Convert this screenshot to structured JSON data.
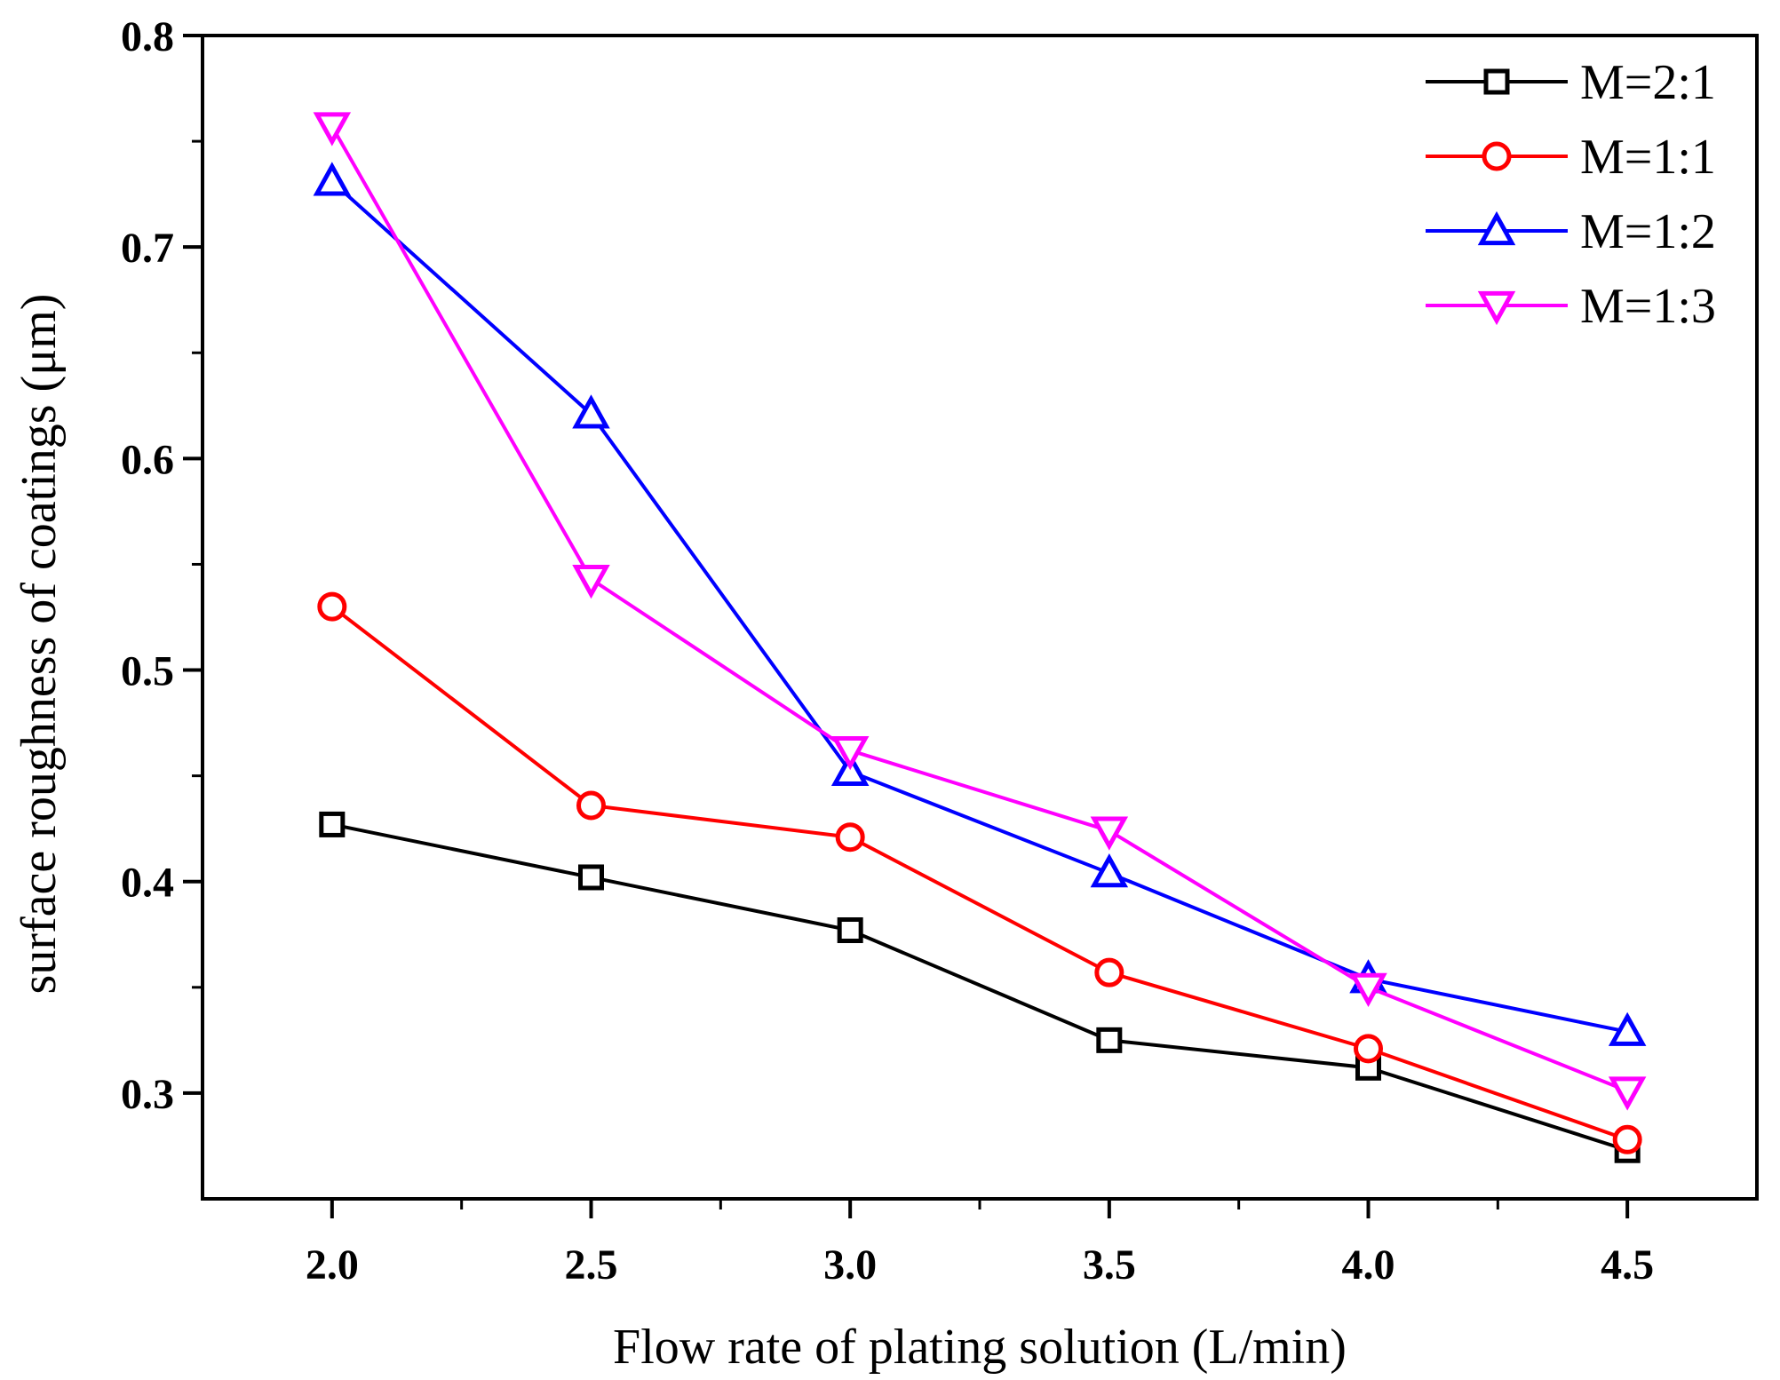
{
  "chart_data": {
    "type": "line",
    "title": "",
    "xlabel": "Flow rate of plating solution (L/min)",
    "ylabel": "surface roughness of coatings (μm)",
    "xlim": [
      1.75,
      4.75
    ],
    "ylim": [
      0.25,
      0.8
    ],
    "x": [
      2.0,
      2.5,
      3.0,
      3.5,
      4.0,
      4.5
    ],
    "x_tick_labels": [
      "2.0",
      "2.5",
      "3.0",
      "3.5",
      "4.0",
      "4.5"
    ],
    "y_ticks": [
      0.3,
      0.4,
      0.5,
      0.6,
      0.7,
      0.8
    ],
    "y_tick_labels": [
      "0.3",
      "0.4",
      "0.5",
      "0.6",
      "0.7",
      "0.8"
    ],
    "grid": false,
    "legend_position": "top-right",
    "series": [
      {
        "name": "M=2:1",
        "color": "#000000",
        "marker": "square",
        "values": [
          0.427,
          0.402,
          0.377,
          0.325,
          0.312,
          0.273
        ]
      },
      {
        "name": "M=1:1",
        "color": "#ff0000",
        "marker": "circle",
        "values": [
          0.53,
          0.436,
          0.421,
          0.357,
          0.321,
          0.278
        ]
      },
      {
        "name": "M=1:2",
        "color": "#0000ff",
        "marker": "triangle-up",
        "values": [
          0.731,
          0.621,
          0.452,
          0.404,
          0.354,
          0.329
        ]
      },
      {
        "name": "M=1:3",
        "color": "#ff00ff",
        "marker": "triangle-down",
        "values": [
          0.757,
          0.543,
          0.462,
          0.424,
          0.35,
          0.301
        ]
      }
    ]
  }
}
